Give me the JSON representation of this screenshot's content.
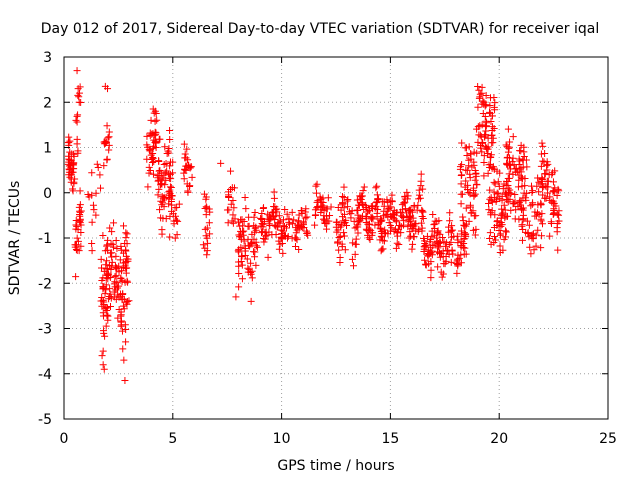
{
  "chart_data": {
    "type": "scatter",
    "title": "Day 012 of 2017, Sidereal Day-to-day VTEC variation (SDTVAR) for receiver iqal",
    "xlabel": "GPS time / hours",
    "ylabel": "SDTVAR / TECUs",
    "xlim": [
      0,
      25
    ],
    "ylim": [
      -5,
      3
    ],
    "xticks": [
      0,
      5,
      10,
      15,
      20,
      25
    ],
    "yticks": [
      -5,
      -4,
      -3,
      -2,
      -1,
      0,
      1,
      2,
      3
    ],
    "grid": true,
    "marker": "+",
    "color": "#ff0000",
    "segments": [
      {
        "x0": 0.2,
        "x1": 0.5,
        "yc": 0.6,
        "spread": 0.7,
        "n": 40
      },
      {
        "x0": 0.5,
        "x1": 0.8,
        "yc": -0.9,
        "spread": 0.9,
        "n": 30
      },
      {
        "x0": 0.6,
        "x1": 0.8,
        "yc": 1.7,
        "spread": 0.9,
        "n": 12
      },
      {
        "x0": 1.1,
        "x1": 1.7,
        "yc": 0.0,
        "spread": 1.2,
        "n": 15
      },
      {
        "x0": 1.7,
        "x1": 2.0,
        "yc": -1.9,
        "spread": 1.4,
        "n": 40
      },
      {
        "x0": 1.8,
        "x1": 2.1,
        "yc": 1.2,
        "spread": 0.6,
        "n": 15
      },
      {
        "x0": 2.0,
        "x1": 2.9,
        "yc": -1.8,
        "spread": 1.3,
        "n": 90
      },
      {
        "x0": 2.6,
        "x1": 3.0,
        "yc": -2.5,
        "spread": 1.1,
        "n": 20
      },
      {
        "x0": 3.8,
        "x1": 4.3,
        "yc": 1.0,
        "spread": 0.9,
        "n": 40
      },
      {
        "x0": 4.3,
        "x1": 5.0,
        "yc": 0.3,
        "spread": 1.1,
        "n": 60
      },
      {
        "x0": 4.8,
        "x1": 5.3,
        "yc": -0.4,
        "spread": 1.0,
        "n": 25
      },
      {
        "x0": 5.5,
        "x1": 5.9,
        "yc": 0.6,
        "spread": 0.9,
        "n": 25
      },
      {
        "x0": 6.4,
        "x1": 6.7,
        "yc": -0.5,
        "spread": 0.8,
        "n": 20
      },
      {
        "x0": 7.5,
        "x1": 7.9,
        "yc": -0.3,
        "spread": 0.7,
        "n": 18
      },
      {
        "x0": 8.0,
        "x1": 8.9,
        "yc": -1.1,
        "spread": 0.9,
        "n": 70
      },
      {
        "x0": 9.0,
        "x1": 10.0,
        "yc": -0.7,
        "spread": 0.6,
        "n": 60
      },
      {
        "x0": 10.0,
        "x1": 11.2,
        "yc": -0.8,
        "spread": 0.5,
        "n": 60
      },
      {
        "x0": 11.5,
        "x1": 12.3,
        "yc": -0.4,
        "spread": 0.5,
        "n": 40
      },
      {
        "x0": 12.5,
        "x1": 13.5,
        "yc": -0.7,
        "spread": 0.8,
        "n": 60
      },
      {
        "x0": 13.5,
        "x1": 14.5,
        "yc": -0.5,
        "spread": 0.6,
        "n": 70
      },
      {
        "x0": 14.5,
        "x1": 15.5,
        "yc": -0.6,
        "spread": 0.7,
        "n": 70
      },
      {
        "x0": 15.5,
        "x1": 16.5,
        "yc": -0.5,
        "spread": 0.7,
        "n": 70
      },
      {
        "x0": 16.5,
        "x1": 17.5,
        "yc": -1.2,
        "spread": 0.7,
        "n": 70
      },
      {
        "x0": 17.5,
        "x1": 18.5,
        "yc": -1.2,
        "spread": 0.6,
        "n": 60
      },
      {
        "x0": 18.2,
        "x1": 19.0,
        "yc": 0.2,
        "spread": 1.2,
        "n": 60
      },
      {
        "x0": 19.0,
        "x1": 19.8,
        "yc": 1.3,
        "spread": 1.0,
        "n": 70
      },
      {
        "x0": 19.5,
        "x1": 20.5,
        "yc": -0.3,
        "spread": 1.2,
        "n": 80
      },
      {
        "x0": 20.3,
        "x1": 21.3,
        "yc": 0.4,
        "spread": 1.0,
        "n": 70
      },
      {
        "x0": 21.0,
        "x1": 22.0,
        "yc": -0.5,
        "spread": 1.0,
        "n": 60
      },
      {
        "x0": 21.9,
        "x1": 22.3,
        "yc": 0.6,
        "spread": 1.0,
        "n": 30
      },
      {
        "x0": 22.3,
        "x1": 22.8,
        "yc": -0.4,
        "spread": 0.9,
        "n": 35
      }
    ],
    "points": [
      [
        0.6,
        2.7
      ],
      [
        0.65,
        2.3
      ],
      [
        0.7,
        2.0
      ],
      [
        0.55,
        1.6
      ],
      [
        2.0,
        2.3
      ],
      [
        1.9,
        2.35
      ],
      [
        1.75,
        -3.6
      ],
      [
        1.8,
        -3.8
      ],
      [
        1.85,
        -3.9
      ],
      [
        1.8,
        -3.5
      ],
      [
        2.8,
        -4.15
      ],
      [
        2.75,
        -3.7
      ],
      [
        2.7,
        -3.45
      ],
      [
        7.2,
        0.65
      ],
      [
        7.9,
        -2.3
      ],
      [
        8.6,
        -2.4
      ],
      [
        8.2,
        -1.9
      ],
      [
        4.1,
        1.85
      ],
      [
        4.2,
        1.8
      ],
      [
        4.0,
        1.6
      ],
      [
        19.2,
        2.2
      ],
      [
        19.4,
        2.15
      ],
      [
        19.6,
        2.1
      ],
      [
        19.3,
        2.0
      ]
    ]
  }
}
